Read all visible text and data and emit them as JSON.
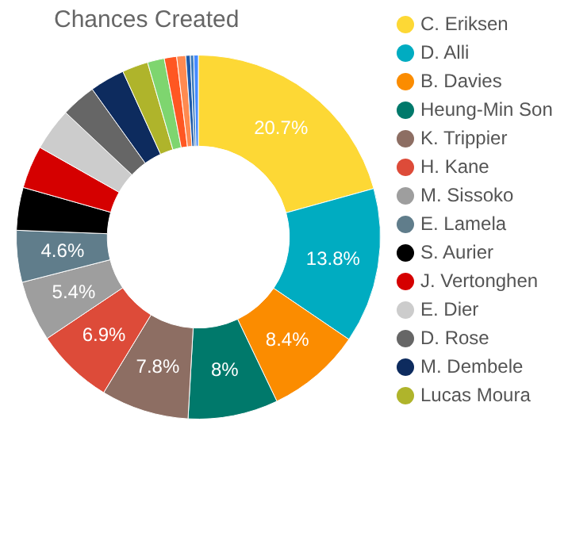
{
  "chart_data": {
    "type": "donut",
    "title": "Chances Created",
    "categories": [
      "C. Eriksen",
      "D. Alli",
      "B. Davies",
      "Heung-Min Son",
      "K. Trippier",
      "H. Kane",
      "M. Sissoko",
      "E. Lamela",
      "S. Aurier",
      "J. Vertonghen",
      "E. Dier",
      "D. Rose",
      "M. Dembele",
      "Lucas Moura",
      null,
      null,
      null,
      null,
      null,
      null
    ],
    "values": [
      20.7,
      13.8,
      8.4,
      8,
      7.8,
      6.9,
      5.4,
      4.6,
      3.8,
      3.8,
      3.8,
      3.1,
      3.1,
      2.3,
      1.5,
      1.1,
      0.8,
      0.4,
      0.3,
      0.4
    ],
    "colors": [
      "#fdd835",
      "#00acc1",
      "#fb8c00",
      "#00796b",
      "#8d6e63",
      "#dd4b39",
      "#9e9e9e",
      "#607d8b",
      "#000000",
      "#d50000",
      "#cccccc",
      "#666666",
      "#0d2b5e",
      "#afb42b",
      "#7ed56f",
      "#ff5722",
      "#ff8a50",
      "#1e5aa8",
      "#3a7bbd",
      "#448aff"
    ],
    "value_labels": [
      "20.7%",
      "13.8%",
      "8.4%",
      "8%",
      "7.8%",
      "6.9%",
      "5.4%",
      "4.6%",
      null,
      null,
      null,
      null,
      null,
      null,
      null,
      null,
      null,
      null,
      null,
      null
    ],
    "legend": "right"
  }
}
